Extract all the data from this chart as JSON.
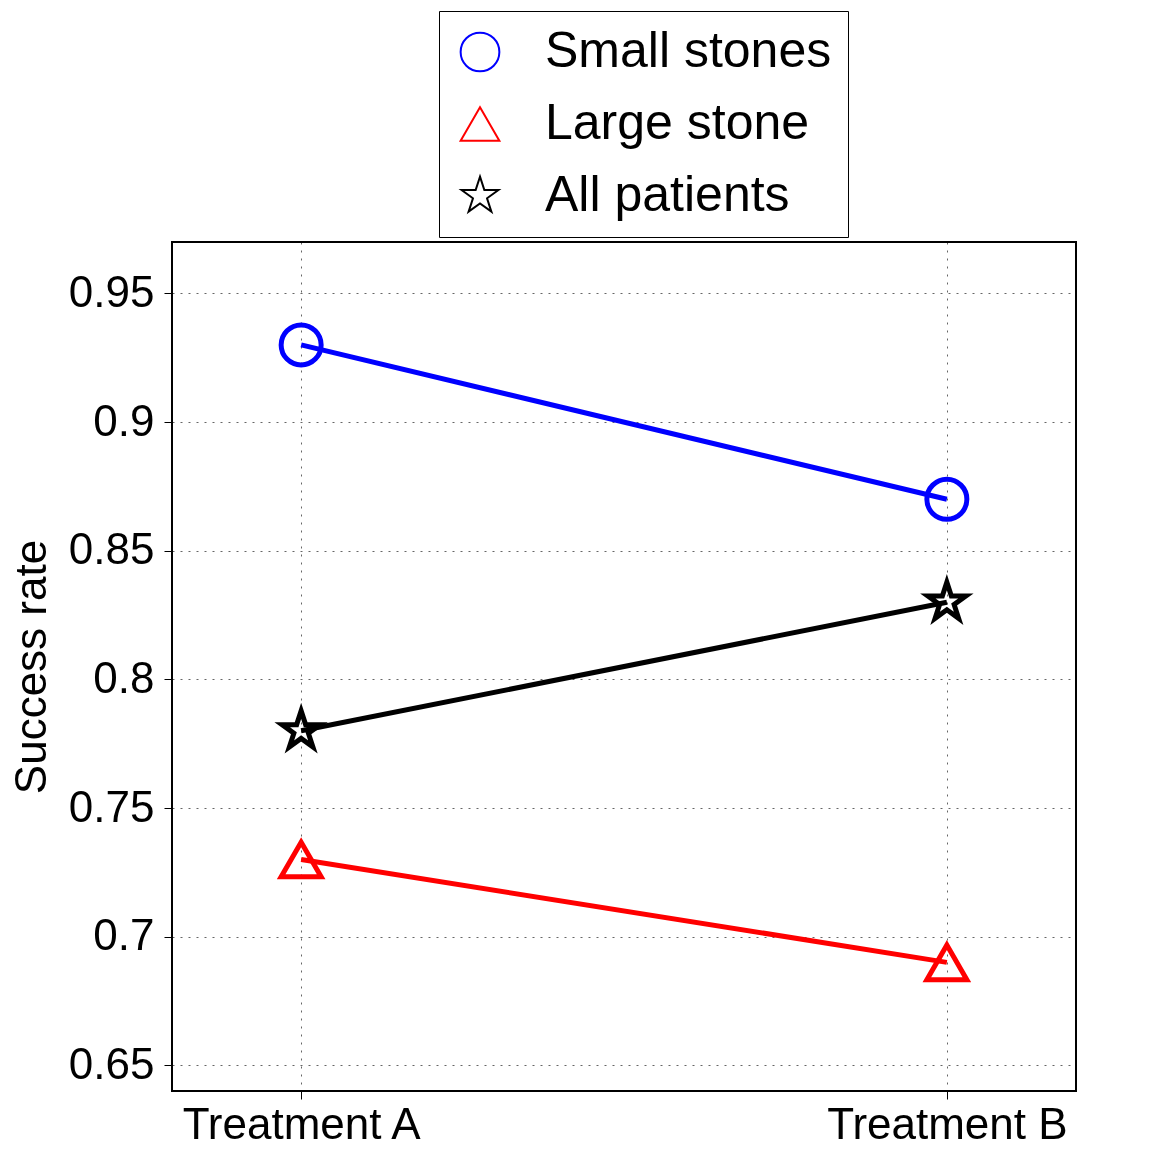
{
  "chart_data": {
    "type": "line",
    "ylabel": "Success rate",
    "categories": [
      "Treatment A",
      "Treatment B"
    ],
    "series": [
      {
        "name": "Small stones",
        "color": "#0000ff",
        "marker": "circle",
        "values": [
          0.93,
          0.87
        ]
      },
      {
        "name": "Large stone",
        "color": "#ff0000",
        "marker": "triangle",
        "values": [
          0.73,
          0.69
        ]
      },
      {
        "name": "All patients",
        "color": "#000000",
        "marker": "star",
        "values": [
          0.78,
          0.83
        ]
      }
    ],
    "ylim": [
      0.64,
      0.97
    ],
    "yticks": [
      0.65,
      0.7,
      0.75,
      0.8,
      0.85,
      0.9,
      0.95
    ],
    "grid": true,
    "legend": "top right",
    "line_style": "solid"
  }
}
